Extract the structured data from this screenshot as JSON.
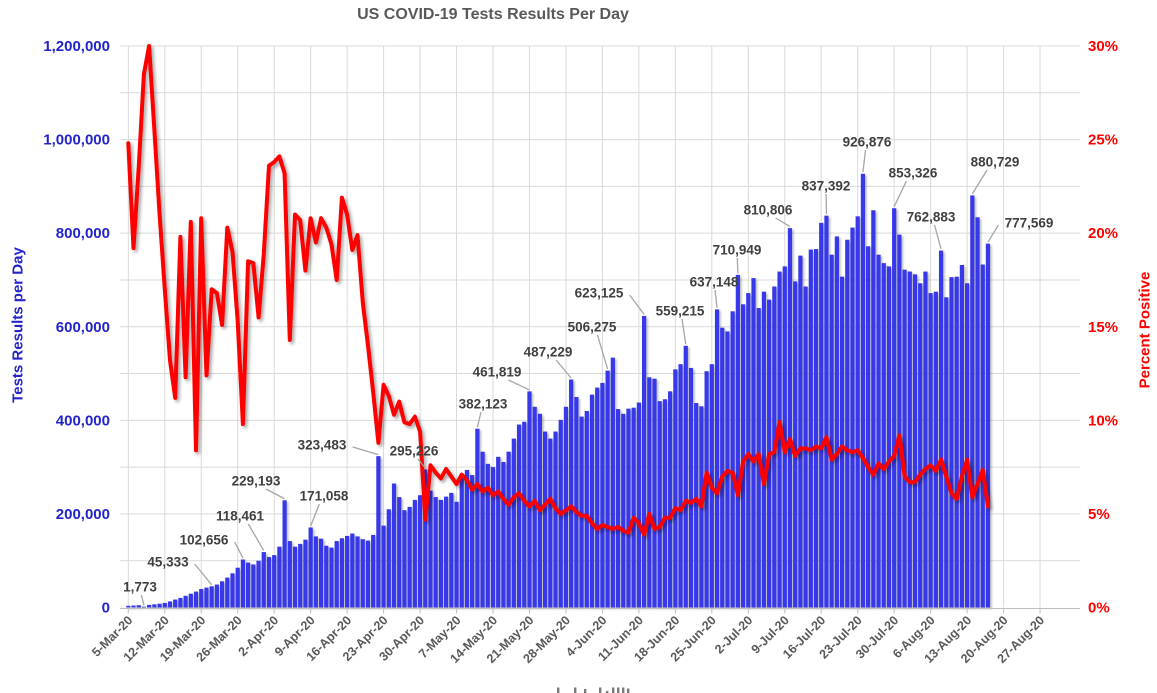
{
  "chart": {
    "title": "US COVID-19 Tests Results Per Day",
    "left_axis": {
      "title": "Tests Results per Day",
      "tick_labels": [
        "0",
        "200,000",
        "400,000",
        "600,000",
        "800,000",
        "1,000,000",
        "1,200,000"
      ],
      "color": "#2323CB"
    },
    "right_axis": {
      "title": "Percent Positive",
      "tick_labels": [
        "0%",
        "5%",
        "10%",
        "15%",
        "20%",
        "25%",
        "30%"
      ],
      "color": "#FF0000"
    },
    "x_axis": {
      "tick_labels": [
        "5-Mar-20",
        "12-Mar-20",
        "19-Mar-20",
        "26-Mar-20",
        "2-Apr-20",
        "9-Apr-20",
        "16-Apr-20",
        "23-Apr-20",
        "30-Apr-20",
        "7-May-20",
        "14-May-20",
        "21-May-20",
        "28-May-20",
        "4-Jun-20",
        "11-Jun-20",
        "18-Jun-20",
        "25-Jun-20",
        "2-Jul-20",
        "9-Jul-20",
        "16-Jul-20",
        "23-Jul-20",
        "30-Jul-20",
        "6-Aug-20",
        "13-Aug-20",
        "20-Aug-20",
        "27-Aug-20"
      ]
    },
    "colors": {
      "bars": "#3737EB",
      "line": "#FF0000",
      "gridline": "#D9D9D9",
      "axis_line": "#BFBFBF",
      "x_label_text": "#595959",
      "callout_text": "#404040",
      "leader_line": "#A6A6A6",
      "title_text": "#595959"
    }
  },
  "chart_data": {
    "type": "bar+line combo",
    "title": "US COVID-19 Tests Results Per Day",
    "start_date": "5-Mar-20",
    "end_date": "17-Aug-20",
    "left_ylabel": "Tests Results per Day",
    "right_ylabel": "Percent Positive",
    "left_ylim": [
      0,
      1200000
    ],
    "right_ylim": [
      0,
      30
    ],
    "grid_interval_left": 100000,
    "x_tick_interval_days": 7,
    "legend": "none",
    "series": [
      {
        "name": "Tests Results per Day",
        "type": "bar",
        "axis": "left",
        "values": [
          3600,
          4200,
          4900,
          1773,
          5600,
          6800,
          8100,
          9800,
          13000,
          17000,
          20500,
          25000,
          29500,
          34000,
          39500,
          42500,
          45333,
          49000,
          56000,
          64000,
          73000,
          85000,
          102656,
          96000,
          92000,
          100000,
          118461,
          108000,
          112000,
          130000,
          229193,
          142000,
          130000,
          136000,
          145000,
          171058,
          152000,
          147000,
          132000,
          128000,
          142000,
          148000,
          153000,
          158000,
          152000,
          146000,
          143000,
          155000,
          323483,
          175000,
          210000,
          265000,
          236000,
          208000,
          215000,
          230000,
          240000,
          295226,
          250000,
          236000,
          230000,
          237000,
          245000,
          226000,
          278000,
          294000,
          283000,
          382123,
          333000,
          307000,
          300000,
          322000,
          311000,
          333000,
          361000,
          391000,
          397000,
          461819,
          429000,
          414000,
          376000,
          361000,
          376000,
          401000,
          429000,
          487229,
          450000,
          408000,
          420000,
          455000,
          470000,
          480000,
          506275,
          534000,
          424000,
          414000,
          425000,
          427000,
          438000,
          623125,
          492000,
          489000,
          441000,
          445000,
          462000,
          509000,
          520000,
          559215,
          512000,
          437000,
          430000,
          505000,
          520000,
          637148,
          598000,
          590000,
          633000,
          710949,
          648000,
          672000,
          704000,
          640000,
          675000,
          658000,
          686000,
          718000,
          729000,
          810806,
          697000,
          752000,
          686000,
          765000,
          766000,
          822000,
          837392,
          754000,
          793000,
          707000,
          786000,
          812000,
          836000,
          926876,
          772000,
          849000,
          754000,
          736000,
          729000,
          853326,
          797000,
          722000,
          718000,
          712000,
          693000,
          718000,
          672000,
          675000,
          762883,
          663000,
          706000,
          707000,
          732000,
          693000,
          880729,
          834000,
          733000,
          777569
        ]
      },
      {
        "name": "Percent Positive",
        "type": "line",
        "axis": "right",
        "unit": "%",
        "values": [
          24.8,
          19.2,
          23.5,
          28.5,
          30.0,
          25.5,
          21.0,
          17.0,
          13.2,
          11.2,
          19.8,
          12.3,
          20.6,
          8.4,
          20.8,
          12.4,
          17.0,
          16.8,
          15.1,
          20.3,
          19.0,
          15.3,
          9.8,
          18.5,
          18.4,
          15.5,
          18.9,
          23.6,
          23.8,
          24.1,
          23.2,
          14.3,
          21.0,
          20.7,
          18.0,
          20.8,
          19.5,
          20.8,
          20.3,
          19.4,
          17.5,
          21.9,
          21.0,
          19.1,
          19.9,
          16.3,
          14.0,
          11.5,
          8.8,
          11.9,
          11.3,
          10.3,
          11.0,
          9.9,
          9.8,
          10.2,
          9.4,
          4.7,
          7.6,
          7.2,
          6.9,
          7.4,
          7.0,
          6.6,
          7.1,
          6.8,
          6.3,
          6.6,
          6.2,
          6.4,
          6.0,
          6.2,
          5.8,
          5.5,
          5.9,
          6.1,
          5.7,
          5.4,
          5.7,
          5.2,
          5.5,
          5.8,
          5.3,
          5.0,
          5.2,
          5.4,
          5.1,
          4.9,
          4.9,
          4.5,
          4.2,
          4.4,
          4.3,
          4.2,
          4.3,
          4.1,
          4.0,
          4.8,
          4.5,
          3.9,
          5.0,
          4.2,
          4.3,
          4.8,
          4.8,
          5.3,
          5.2,
          5.7,
          5.6,
          5.8,
          5.4,
          7.2,
          6.4,
          6.1,
          7.0,
          7.3,
          7.2,
          6.0,
          7.8,
          8.2,
          7.8,
          8.2,
          6.6,
          8.2,
          8.3,
          9.9,
          8.3,
          9.0,
          8.1,
          8.5,
          8.5,
          8.4,
          8.6,
          8.5,
          9.1,
          7.9,
          8.2,
          8.6,
          8.4,
          8.3,
          8.4,
          8.0,
          7.5,
          7.1,
          7.7,
          7.4,
          7.8,
          8.1,
          9.2,
          7.0,
          6.7,
          6.7,
          7.1,
          7.4,
          7.6,
          7.3,
          7.9,
          7.0,
          6.1,
          5.8,
          7.0,
          7.9,
          5.9,
          6.6,
          7.35,
          5.4
        ]
      }
    ],
    "callouts": [
      {
        "label": "1,773",
        "day": 3,
        "date": "8-Mar-20"
      },
      {
        "label": "45,333",
        "day": 16,
        "date": "21-Mar-20"
      },
      {
        "label": "102,656",
        "day": 22,
        "date": "27-Mar-20"
      },
      {
        "label": "118,461",
        "day": 26,
        "date": "31-Mar-20"
      },
      {
        "label": "229,193",
        "day": 30,
        "date": "4-Apr-20"
      },
      {
        "label": "171,058",
        "day": 35,
        "date": "9-Apr-20"
      },
      {
        "label": "323,483",
        "day": 48,
        "date": "22-Apr-20"
      },
      {
        "label": "295,226",
        "day": 57,
        "date": "1-May-20"
      },
      {
        "label": "382,123",
        "day": 67,
        "date": "11-May-20"
      },
      {
        "label": "461,819",
        "day": 77,
        "date": "21-May-20"
      },
      {
        "label": "487,229",
        "day": 85,
        "date": "29-May-20"
      },
      {
        "label": "506,275",
        "day": 92,
        "date": "5-Jun-20"
      },
      {
        "label": "623,125",
        "day": 99,
        "date": "12-Jun-20"
      },
      {
        "label": "559,215",
        "day": 107,
        "date": "20-Jun-20"
      },
      {
        "label": "637,148",
        "day": 113,
        "date": "26-Jun-20"
      },
      {
        "label": "710,949",
        "day": 117,
        "date": "30-Jun-20"
      },
      {
        "label": "810,806",
        "day": 127,
        "date": "10-Jul-20"
      },
      {
        "label": "837,392",
        "day": 134,
        "date": "17-Jul-20"
      },
      {
        "label": "926,876",
        "day": 141,
        "date": "24-Jul-20"
      },
      {
        "label": "853,326",
        "day": 147,
        "date": "30-Jul-20"
      },
      {
        "label": "762,883",
        "day": 156,
        "date": "8-Aug-20"
      },
      {
        "label": "880,729",
        "day": 162,
        "date": "14-Aug-20"
      },
      {
        "label": "777,569",
        "day": 165,
        "date": "17-Aug-20"
      }
    ]
  }
}
